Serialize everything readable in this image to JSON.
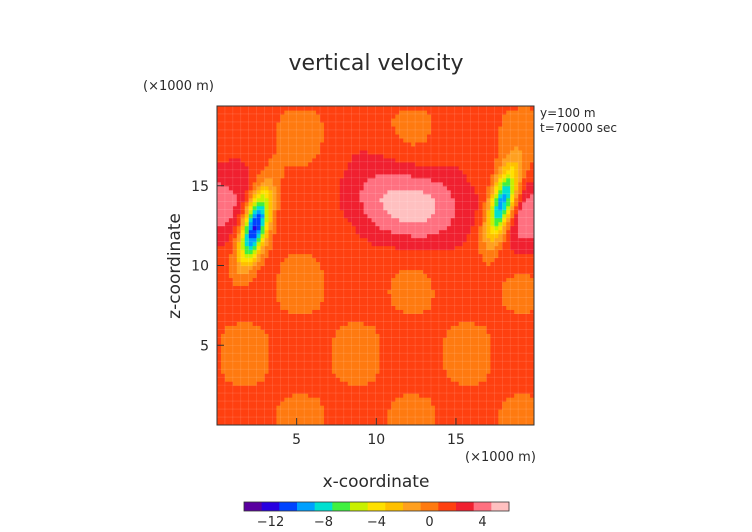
{
  "chart_data": {
    "type": "heatmap",
    "title": "vertical velocity",
    "xlabel": "x-coordinate",
    "ylabel": "z-coordinate",
    "x_unit": "(×1000 m)",
    "y_unit": "(×1000 m)",
    "annotations": [
      "y=100 m",
      "t=70000 sec"
    ],
    "xlim": [
      0,
      19.9
    ],
    "ylim": [
      0,
      20
    ],
    "xticks": [
      5,
      10,
      15
    ],
    "yticks": [
      5,
      10,
      15
    ],
    "grid": true,
    "colorbar": {
      "min": -14,
      "max": 6,
      "ticks": [
        -12,
        -8,
        -4,
        0,
        4
      ],
      "tick_labels": [
        "−12",
        "−8",
        "−4",
        "0",
        "4"
      ],
      "colors": [
        "#5a00a0",
        "#2800e0",
        "#0044ff",
        "#00a0ff",
        "#00e0d0",
        "#40f040",
        "#c8f000",
        "#ffe000",
        "#ffc000",
        "#ffa020",
        "#ff7a10",
        "#ff4010",
        "#f02030",
        "#ff7080",
        "#ffc0c0"
      ]
    },
    "background_value": 0.8,
    "features": [
      {
        "kind": "downdraft",
        "x": 2.4,
        "z": 12.5,
        "min": -12.5
      },
      {
        "kind": "downdraft",
        "x": 17.9,
        "z": 13.9,
        "min": -11.5
      },
      {
        "kind": "updraft",
        "x": 10.1,
        "z": 14.1,
        "max": 4.2
      },
      {
        "kind": "updraft",
        "x": 13.8,
        "z": 13.6,
        "max": 4.0
      },
      {
        "kind": "updraft",
        "x": 0.4,
        "z": 13.8,
        "max": 4.2
      },
      {
        "kind": "updraft",
        "x": 19.6,
        "z": 13.0,
        "max": 3.8
      }
    ]
  }
}
